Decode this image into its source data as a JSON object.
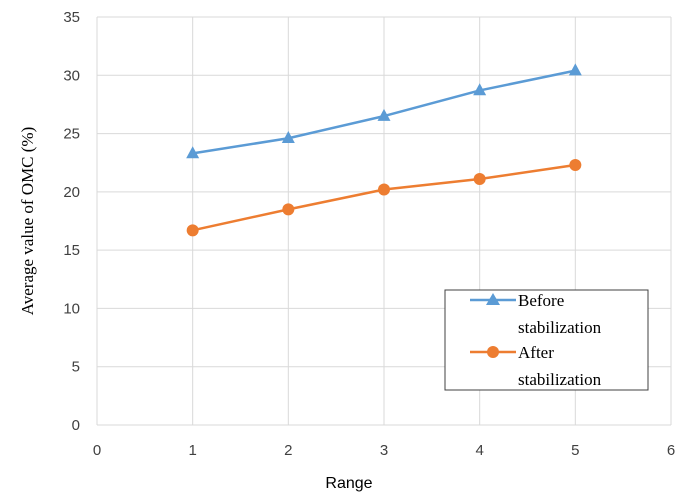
{
  "chart_data": {
    "type": "line",
    "xlabel": "Range",
    "ylabel": "Average value of  OMC (%)",
    "xlim": [
      0,
      6
    ],
    "ylim": [
      0,
      35
    ],
    "x_ticks": [
      "0",
      "1",
      "2",
      "3",
      "4",
      "5",
      "6"
    ],
    "y_ticks": [
      "0",
      "5",
      "10",
      "15",
      "20",
      "25",
      "30",
      "35"
    ],
    "grid": true,
    "legend_position": "bottom-right",
    "x": [
      1,
      2,
      3,
      4,
      5
    ],
    "series": [
      {
        "name": "Before stabilization",
        "legend_lines": [
          "Before",
          "stabilization"
        ],
        "values": [
          23.3,
          24.6,
          26.5,
          28.7,
          30.4
        ],
        "color": "#5b9bd5",
        "marker": "triangle"
      },
      {
        "name": "After stabilization",
        "legend_lines": [
          "After",
          "stabilization"
        ],
        "values": [
          16.7,
          18.5,
          20.2,
          21.1,
          22.3
        ],
        "color": "#ed7d31",
        "marker": "circle"
      }
    ]
  }
}
